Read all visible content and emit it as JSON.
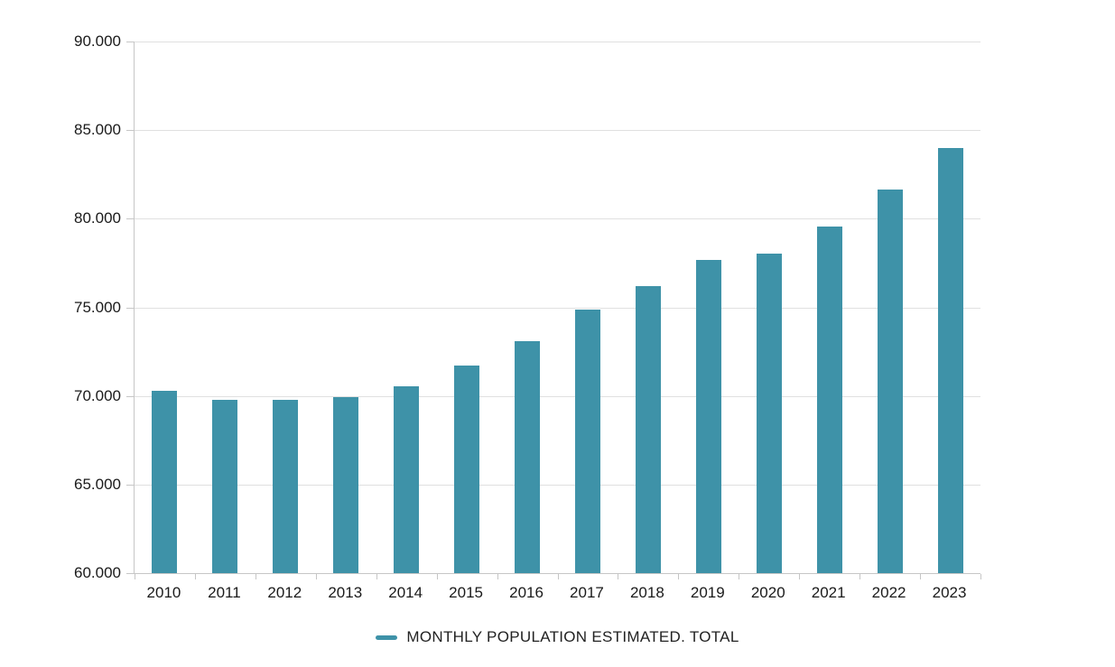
{
  "chart_data": {
    "type": "bar",
    "title": "",
    "xlabel": "",
    "ylabel": "",
    "categories": [
      "2010",
      "2011",
      "2012",
      "2013",
      "2014",
      "2015",
      "2016",
      "2017",
      "2018",
      "2019",
      "2020",
      "2021",
      "2022",
      "2023"
    ],
    "values": [
      70300,
      69800,
      69800,
      69950,
      70550,
      71700,
      73100,
      74850,
      76200,
      77650,
      78050,
      79550,
      81650,
      84000
    ],
    "series_name": "MONTHLY POPULATION ESTIMATED. TOTAL",
    "ylim": [
      60000,
      90000
    ],
    "ytick_values": [
      60000,
      65000,
      70000,
      75000,
      80000,
      85000,
      90000
    ],
    "ytick_labels": [
      "60.000",
      "65.000",
      "70.000",
      "75.000",
      "80.000",
      "85.000",
      "90.000"
    ],
    "grid": true,
    "legend_position": "bottom",
    "colors": {
      "bar": "#3e92a8",
      "gridline": "#e0e0e0",
      "axis": "#c6c6c6",
      "text": "#1a1a1a"
    }
  }
}
